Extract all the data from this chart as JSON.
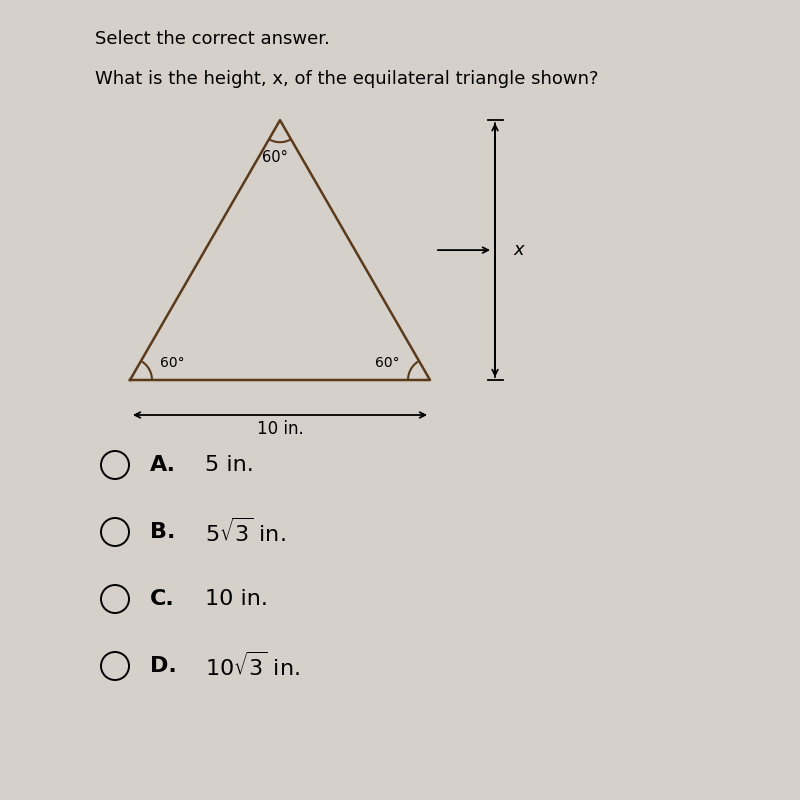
{
  "bg_color": "#d6d0ca",
  "title1": "Select the correct answer.",
  "title2": "What is the height, x, of the equilateral triangle shown?",
  "triangle": {
    "apex_angle_label": "60°",
    "left_angle_label": "60°",
    "right_angle_label": "60°",
    "base_label": "10 in.",
    "color": "#5a3a1a"
  },
  "height_label": "x",
  "choices": [
    {
      "letter": "A.",
      "text": "5 in.",
      "has_sqrt": false,
      "before_sqrt": "",
      "sqrt_num": "",
      "after_sqrt": ""
    },
    {
      "letter": "B.",
      "text": "5√3 in.",
      "has_sqrt": true,
      "before_sqrt": "5",
      "sqrt_num": "3",
      "after_sqrt": " in."
    },
    {
      "letter": "C.",
      "text": "10 in.",
      "has_sqrt": false,
      "before_sqrt": "",
      "sqrt_num": "",
      "after_sqrt": ""
    },
    {
      "letter": "D.",
      "text": "10√3 in.",
      "has_sqrt": true,
      "before_sqrt": "10",
      "sqrt_num": "3",
      "after_sqrt": " in."
    }
  ],
  "choice_font_size": 16,
  "title1_fontsize": 13,
  "title2_fontsize": 13
}
